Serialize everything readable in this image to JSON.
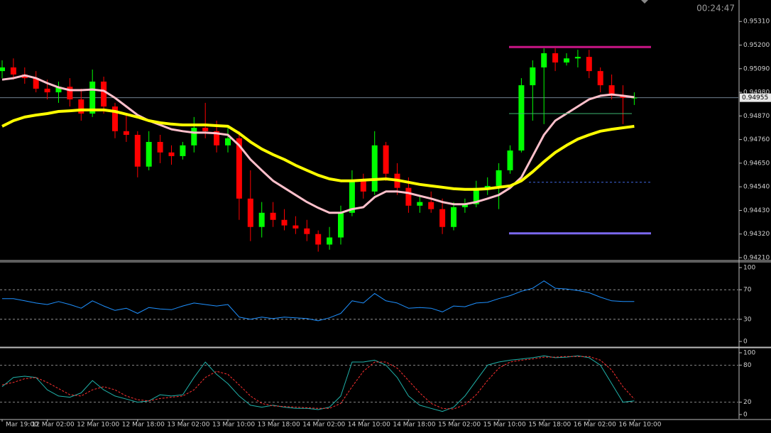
{
  "chart_data": [
    {
      "type": "candlestick",
      "timer": "00:24:47",
      "categories": [
        "Mar 19:00",
        null,
        null,
        null,
        "12 Mar 02:00",
        null,
        null,
        null,
        "12 Mar 10:00",
        null,
        null,
        null,
        "12 Mar 18:00",
        null,
        null,
        null,
        "13 Mar 02:00",
        null,
        null,
        null,
        "13 Mar 10:00",
        null,
        null,
        null,
        "13 Mar 18:00",
        null,
        null,
        null,
        "14 Mar 02:00",
        null,
        null,
        null,
        "14 Mar 10:00",
        null,
        null,
        null,
        "14 Mar 18:00",
        null,
        null,
        null,
        "15 Mar 02:00",
        null,
        null,
        null,
        "15 Mar 10:00",
        null,
        null,
        null,
        "15 Mar 18:00",
        null,
        null,
        null,
        "16 Mar 02:00",
        null,
        null,
        null,
        "16 Mar 10:00"
      ],
      "open": [
        0.95079,
        0.95096,
        0.95063,
        0.95046,
        0.94997,
        0.9498,
        0.95006,
        0.94947,
        0.94881,
        0.9503,
        0.94914,
        0.94799,
        0.94782,
        0.94634,
        0.94749,
        0.947,
        0.94683,
        0.94733,
        0.94815,
        0.94799,
        0.94733,
        0.94766,
        0.94485,
        0.94353,
        0.94419,
        0.94386,
        0.9436,
        0.94346,
        0.9432,
        0.94271,
        0.94304,
        0.94419,
        0.94568,
        0.94518,
        0.94733,
        0.94601,
        0.94535,
        0.94452,
        0.94469,
        0.94436,
        0.94353,
        0.94445,
        0.94459,
        0.94535,
        0.94544,
        0.94617,
        0.94709,
        0.95013,
        0.95096,
        0.95162,
        0.95119,
        0.95138,
        0.95145,
        0.95079,
        0.95013,
        0.94964,
        0.94954
      ],
      "high": [
        0.95129,
        0.95138,
        0.95096,
        0.95079,
        0.95039,
        0.9503,
        0.95046,
        0.94997,
        0.95086,
        0.95053,
        0.94931,
        0.94881,
        0.94799,
        0.94799,
        0.94782,
        0.94733,
        0.94749,
        0.94865,
        0.94931,
        0.94848,
        0.94815,
        0.94799,
        0.94617,
        0.94469,
        0.94469,
        0.94436,
        0.94403,
        0.94386,
        0.94337,
        0.94353,
        0.94452,
        0.94617,
        0.94601,
        0.94799,
        0.94749,
        0.9465,
        0.94584,
        0.94502,
        0.94518,
        0.94485,
        0.94469,
        0.94485,
        0.94568,
        0.94584,
        0.9465,
        0.94733,
        0.95046,
        0.95129,
        0.95185,
        0.95185,
        0.95162,
        0.95178,
        0.95178,
        0.95096,
        0.95063,
        0.95013,
        0.9498
      ],
      "low": [
        0.95046,
        0.95039,
        0.9502,
        0.9498,
        0.94947,
        0.94931,
        0.94914,
        0.94848,
        0.94865,
        0.94881,
        0.94766,
        0.94749,
        0.94584,
        0.94617,
        0.9465,
        0.94643,
        0.94667,
        0.947,
        0.94766,
        0.947,
        0.947,
        0.94386,
        0.94287,
        0.94304,
        0.94353,
        0.94337,
        0.9432,
        0.94287,
        0.94238,
        0.94247,
        0.94271,
        0.94403,
        0.94485,
        0.94502,
        0.94568,
        0.94502,
        0.94419,
        0.94419,
        0.94419,
        0.9432,
        0.94337,
        0.94419,
        0.94445,
        0.94502,
        0.94436,
        0.94601,
        0.947,
        0.94848,
        0.94832,
        0.95079,
        0.95105,
        0.95096,
        0.95046,
        0.9498,
        0.94947,
        0.94832,
        0.94921
      ],
      "close": [
        0.95096,
        0.95063,
        0.95046,
        0.94997,
        0.9498,
        0.95006,
        0.94947,
        0.94881,
        0.9503,
        0.94914,
        0.94799,
        0.94782,
        0.94634,
        0.94749,
        0.947,
        0.94683,
        0.94733,
        0.94815,
        0.94799,
        0.94733,
        0.94766,
        0.94485,
        0.94353,
        0.94419,
        0.94386,
        0.9436,
        0.94346,
        0.9432,
        0.94271,
        0.94304,
        0.94419,
        0.94568,
        0.94518,
        0.94733,
        0.94601,
        0.94535,
        0.94452,
        0.94469,
        0.94436,
        0.94353,
        0.94445,
        0.94459,
        0.94535,
        0.94544,
        0.94617,
        0.94709,
        0.95013,
        0.95096,
        0.95162,
        0.95119,
        0.95138,
        0.95145,
        0.95079,
        0.95013,
        0.94964,
        0.94954,
        0.94955
      ],
      "up_color": "#00ff00",
      "down_color": "#ff0000",
      "series": [
        {
          "color": "#ffc0cb",
          "values": [
            0.95039,
            0.95046,
            0.95059,
            0.95046,
            0.95023,
            0.95003,
            0.9499,
            0.9499,
            0.94993,
            0.94987,
            0.94954,
            0.94914,
            0.94874,
            0.94848,
            0.94828,
            0.94808,
            0.94799,
            0.94792,
            0.94792,
            0.94789,
            0.94782,
            0.94733,
            0.94667,
            0.94617,
            0.94568,
            0.94535,
            0.94502,
            0.94469,
            0.94442,
            0.94419,
            0.94419,
            0.94436,
            0.94445,
            0.94492,
            0.94518,
            0.94518,
            0.94511,
            0.94498,
            0.94485,
            0.94469,
            0.94459,
            0.94459,
            0.94469,
            0.94485,
            0.94502,
            0.94535,
            0.94584,
            0.94683,
            0.94782,
            0.94848,
            0.94881,
            0.94914,
            0.94947,
            0.94964,
            0.9497,
            0.94964,
            0.94957
          ]
        },
        {
          "color": "#ffff00",
          "values": [
            0.94822,
            0.94848,
            0.94865,
            0.94874,
            0.94881,
            0.94891,
            0.94894,
            0.94898,
            0.94898,
            0.94898,
            0.94891,
            0.94878,
            0.94865,
            0.94848,
            0.94838,
            0.94832,
            0.94828,
            0.94828,
            0.94828,
            0.94825,
            0.94822,
            0.94789,
            0.94749,
            0.94716,
            0.9469,
            0.94667,
            0.9464,
            0.94617,
            0.94594,
            0.94577,
            0.94568,
            0.94568,
            0.94571,
            0.94574,
            0.94577,
            0.94571,
            0.94561,
            0.94551,
            0.94544,
            0.94538,
            0.94531,
            0.94528,
            0.94528,
            0.94531,
            0.94538,
            0.94544,
            0.94568,
            0.9461,
            0.94657,
            0.947,
            0.94733,
            0.94762,
            0.94782,
            0.94799,
            0.94808,
            0.94815,
            0.94822
          ]
        }
      ],
      "hlines": [
        {
          "value": 0.95191,
          "color": "#c71585"
        },
        {
          "value": 0.94881,
          "color": "#3cb371"
        },
        {
          "value": 0.94561,
          "color": "#4169e1",
          "style": "dashed"
        },
        {
          "value": 0.94323,
          "color": "#7b68ee"
        }
      ],
      "price_line": {
        "value": 0.94955,
        "label": "0.94955",
        "color": "#708090"
      },
      "ylim": [
        0.942,
        0.9541
      ],
      "yticks": [
        {
          "value": 0.9531,
          "label": "0.95310"
        },
        {
          "value": 0.952,
          "label": "0.95200"
        },
        {
          "value": 0.9509,
          "label": "0.95090"
        },
        {
          "value": 0.9498,
          "label": "0.94980"
        },
        {
          "value": 0.9487,
          "label": "0.94870"
        },
        {
          "value": 0.9476,
          "label": "0.94760"
        },
        {
          "value": 0.9465,
          "label": "0.94650"
        },
        {
          "value": 0.9454,
          "label": "0.94540"
        },
        {
          "value": 0.9443,
          "label": "0.94430"
        },
        {
          "value": 0.9432,
          "label": "0.94320"
        },
        {
          "value": 0.9421,
          "label": "0.94210"
        }
      ]
    },
    {
      "type": "line",
      "series": [
        {
          "color": "#1e90ff",
          "values": [
            58,
            58,
            55,
            52,
            50,
            54,
            50,
            45,
            55,
            48,
            42,
            45,
            38,
            46,
            44,
            43,
            48,
            52,
            50,
            48,
            50,
            33,
            30,
            33,
            31,
            33,
            32,
            31,
            28,
            32,
            38,
            55,
            52,
            65,
            55,
            52,
            45,
            46,
            45,
            40,
            48,
            47,
            52,
            53,
            58,
            62,
            68,
            72,
            82,
            72,
            71,
            69,
            66,
            60,
            55,
            54,
            54
          ]
        }
      ],
      "levels": [
        70,
        30
      ],
      "ylim": [
        -6.7,
        106.7
      ],
      "yticks": [
        100,
        70,
        30,
        0
      ]
    },
    {
      "type": "line",
      "series": [
        {
          "color": "#20b2aa",
          "values": [
            45,
            60,
            62,
            60,
            40,
            30,
            28,
            35,
            55,
            40,
            30,
            25,
            20,
            22,
            32,
            30,
            32,
            60,
            85,
            65,
            50,
            30,
            15,
            12,
            15,
            12,
            10,
            10,
            8,
            12,
            30,
            85,
            85,
            88,
            80,
            60,
            30,
            15,
            10,
            5,
            12,
            30,
            55,
            80,
            85,
            88,
            90,
            92,
            95,
            92,
            93,
            95,
            92,
            80,
            50,
            20,
            22
          ]
        },
        {
          "color": "#ff3030",
          "style": "dashed",
          "values": [
            48,
            52,
            58,
            60,
            52,
            42,
            32,
            30,
            40,
            45,
            40,
            30,
            24,
            22,
            26,
            28,
            30,
            40,
            60,
            70,
            65,
            48,
            30,
            18,
            14,
            13,
            12,
            11,
            10,
            10,
            18,
            45,
            70,
            85,
            85,
            75,
            55,
            35,
            18,
            10,
            9,
            16,
            32,
            55,
            75,
            85,
            88,
            90,
            93,
            93,
            94,
            94,
            94,
            88,
            72,
            45,
            25
          ]
        }
      ],
      "levels": [
        80,
        20
      ],
      "ylim": [
        -6.9,
        108
      ],
      "yticks": [
        100,
        80,
        20,
        0
      ]
    }
  ]
}
